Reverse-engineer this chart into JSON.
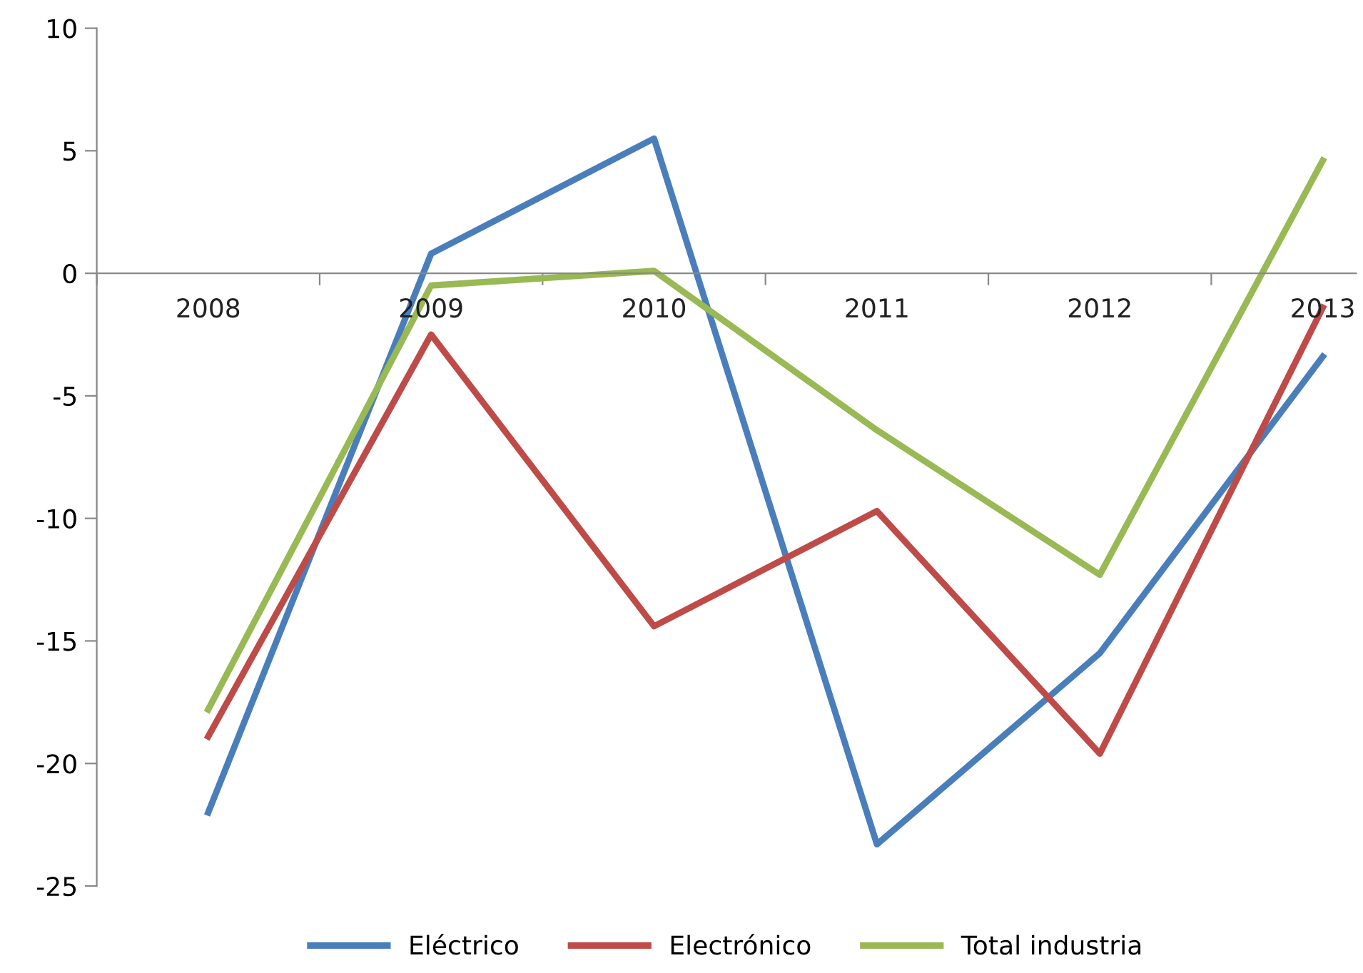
{
  "chart_data": {
    "type": "line",
    "categories": [
      "2008",
      "2009",
      "2010",
      "2011",
      "2012",
      "2013"
    ],
    "series": [
      {
        "name": "Eléctrico",
        "color": "#4a7ebb",
        "values": [
          -22.0,
          0.8,
          5.5,
          -23.3,
          -15.5,
          -3.4
        ]
      },
      {
        "name": "Electrónico",
        "color": "#be4b48",
        "values": [
          -18.9,
          -2.5,
          -14.4,
          -9.7,
          -19.6,
          -1.4
        ]
      },
      {
        "name": "Total industria",
        "color": "#98b954",
        "values": [
          -17.8,
          -0.5,
          0.1,
          -6.4,
          -12.3,
          4.6
        ]
      }
    ],
    "ylim": [
      -25,
      10
    ],
    "yticks": [
      -25,
      -20,
      -15,
      -10,
      -5,
      0,
      5,
      10
    ],
    "grid": false,
    "legend": "bottom",
    "marker": "none",
    "line_style": "solid"
  }
}
